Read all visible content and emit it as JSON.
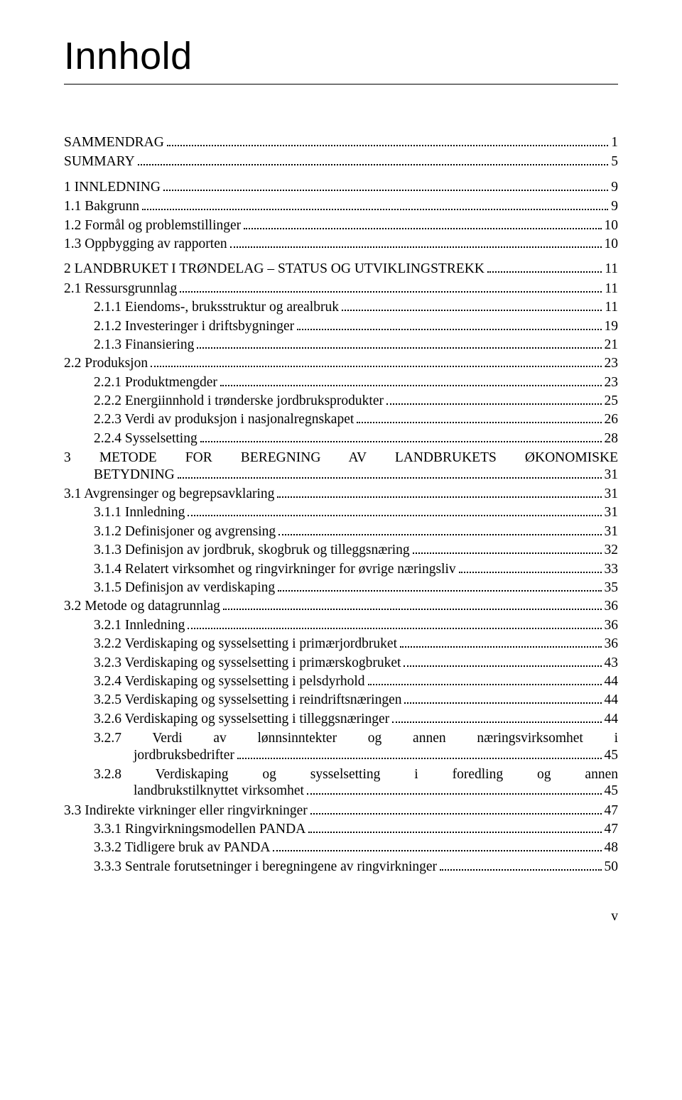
{
  "title": "Innhold",
  "footer_page": "v",
  "entries": [
    {
      "type": "row",
      "level": "top",
      "label": "SAMMENDRAG",
      "page": "1",
      "gap_before": false
    },
    {
      "type": "row",
      "level": "top",
      "label": "SUMMARY",
      "page": "5",
      "gap_before": false
    },
    {
      "type": "row",
      "level": "chapter",
      "label": "1 INNLEDNING",
      "page": "9",
      "gap_before": true
    },
    {
      "type": "row",
      "level": "section",
      "label": "1.1 Bakgrunn",
      "page": "9",
      "gap_before": false
    },
    {
      "type": "row",
      "level": "section",
      "label": "1.2 Formål og problemstillinger",
      "page": "10",
      "gap_before": false
    },
    {
      "type": "row",
      "level": "section",
      "label": "1.3 Oppbygging av rapporten",
      "page": "10",
      "gap_before": false
    },
    {
      "type": "row",
      "level": "chapter",
      "label": "2 LANDBRUKET I TRØNDELAG – STATUS OG UTVIKLINGSTREKK",
      "page": "11",
      "gap_before": true
    },
    {
      "type": "row",
      "level": "section",
      "label": "2.1 Ressursgrunnlag",
      "page": "11",
      "gap_before": false
    },
    {
      "type": "row",
      "level": "subsection",
      "label": "2.1.1 Eiendoms-, bruksstruktur og arealbruk",
      "page": "11",
      "gap_before": false
    },
    {
      "type": "row",
      "level": "subsection",
      "label": "2.1.2 Investeringer i driftsbygninger",
      "page": "19",
      "gap_before": false
    },
    {
      "type": "row",
      "level": "subsection",
      "label": "2.1.3 Finansiering",
      "page": "21",
      "gap_before": false
    },
    {
      "type": "row",
      "level": "section",
      "label": "2.2 Produksjon",
      "page": "23",
      "gap_before": false
    },
    {
      "type": "row",
      "level": "subsection",
      "label": "2.2.1 Produktmengder",
      "page": "23",
      "gap_before": false
    },
    {
      "type": "row",
      "level": "subsection",
      "label": "2.2.2 Energiinnhold i trønderske jordbruksprodukter",
      "page": "25",
      "gap_before": false
    },
    {
      "type": "row",
      "level": "subsection",
      "label": "2.2.3 Verdi av produksjon i nasjonalregnskapet",
      "page": "26",
      "gap_before": false
    },
    {
      "type": "row",
      "level": "subsection",
      "label": "2.2.4 Sysselsetting",
      "page": "28",
      "gap_before": false
    },
    {
      "type": "multi",
      "level": "chapter",
      "lead_lines": [
        "3 METODE FOR BEREGNING AV LANDBRUKETS ØKONOMISKE"
      ],
      "last_line": "BETYDNING",
      "last_indent": 42,
      "page": "31",
      "gap_before": true
    },
    {
      "type": "row",
      "level": "section",
      "label": "3.1 Avgrensinger og begrepsavklaring",
      "page": "31",
      "gap_before": false
    },
    {
      "type": "row",
      "level": "subsection",
      "label": "3.1.1 Innledning",
      "page": "31",
      "gap_before": false
    },
    {
      "type": "row",
      "level": "subsection",
      "label": "3.1.2 Definisjoner og avgrensing",
      "page": "31",
      "gap_before": false
    },
    {
      "type": "row",
      "level": "subsection",
      "label": "3.1.3 Definisjon av jordbruk, skogbruk og tilleggsnæring",
      "page": "32",
      "gap_before": false
    },
    {
      "type": "row",
      "level": "subsection",
      "label": "3.1.4 Relatert virksomhet og ringvirkninger for øvrige næringsliv",
      "page": "33",
      "gap_before": false
    },
    {
      "type": "row",
      "level": "subsection",
      "label": "3.1.5 Definisjon av verdiskaping",
      "page": "35",
      "gap_before": false
    },
    {
      "type": "row",
      "level": "section",
      "label": "3.2 Metode og datagrunnlag",
      "page": "36",
      "gap_before": false
    },
    {
      "type": "row",
      "level": "subsection",
      "label": "3.2.1 Innledning",
      "page": "36",
      "gap_before": false
    },
    {
      "type": "row",
      "level": "subsection",
      "label": "3.2.2 Verdiskaping og sysselsetting i primærjordbruket",
      "page": "36",
      "gap_before": false
    },
    {
      "type": "row",
      "level": "subsection",
      "label": "3.2.3 Verdiskaping og sysselsetting i primærskogbruket",
      "page": "43",
      "gap_before": false
    },
    {
      "type": "row",
      "level": "subsection",
      "label": "3.2.4 Verdiskaping og sysselsetting i pelsdyrhold",
      "page": "44",
      "gap_before": false
    },
    {
      "type": "row",
      "level": "subsection",
      "label": "3.2.5 Verdiskaping og sysselsetting i reindriftsnæringen",
      "page": "44",
      "gap_before": false
    },
    {
      "type": "row",
      "level": "subsection",
      "label": "3.2.6 Verdiskaping og sysselsetting i tilleggsnæringer",
      "page": "44",
      "gap_before": false
    },
    {
      "type": "multi",
      "level": "subsection",
      "lead_lines": [
        "3.2.7 Verdi av lønnsinntekter og annen næringsvirksomhet i"
      ],
      "last_line": "jordbruksbedrifter",
      "last_indent": 98,
      "page": "45",
      "gap_before": false
    },
    {
      "type": "multi",
      "level": "subsection",
      "lead_lines": [
        "3.2.8 Verdiskaping og sysselsetting i foredling og annen"
      ],
      "last_line": "landbrukstilknyttet virksomhet",
      "last_indent": 98,
      "page": "45",
      "gap_before": false
    },
    {
      "type": "row",
      "level": "section",
      "label": "3.3 Indirekte virkninger eller ringvirkninger",
      "page": "47",
      "gap_before": false
    },
    {
      "type": "row",
      "level": "subsection",
      "label": "3.3.1 Ringvirkningsmodellen PANDA",
      "page": "47",
      "gap_before": false
    },
    {
      "type": "row",
      "level": "subsection",
      "label": "3.3.2 Tidligere bruk av PANDA",
      "page": "48",
      "gap_before": false
    },
    {
      "type": "row",
      "level": "subsection",
      "label": "3.3.3 Sentrale forutsetninger i beregningene av ringvirkninger",
      "page": "50",
      "gap_before": false
    }
  ]
}
